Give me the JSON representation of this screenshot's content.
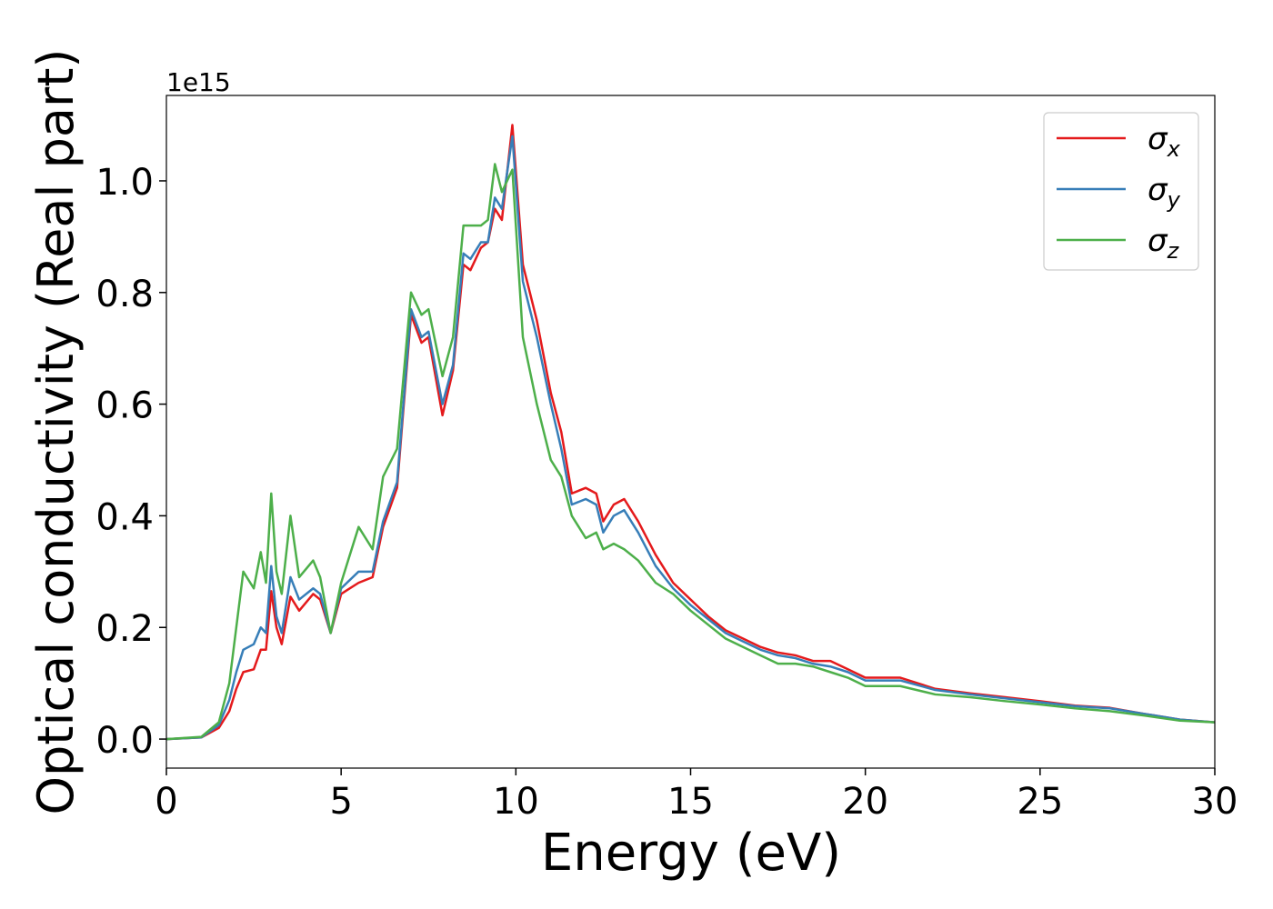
{
  "chart_data": {
    "type": "line",
    "x_label": "Energy (eV)",
    "y_label": "Optical conductivity (Real part)",
    "y_offset_label": "1e15",
    "x": [
      0,
      1,
      1.5,
      1.8,
      2.0,
      2.2,
      2.5,
      2.7,
      2.85,
      3.0,
      3.15,
      3.3,
      3.55,
      3.8,
      4.2,
      4.4,
      4.7,
      5.0,
      5.5,
      5.9,
      6.2,
      6.6,
      7.0,
      7.3,
      7.5,
      7.9,
      8.2,
      8.5,
      8.7,
      9.0,
      9.2,
      9.4,
      9.6,
      9.9,
      10.2,
      10.6,
      11.0,
      11.3,
      11.6,
      12.0,
      12.3,
      12.5,
      12.8,
      13.1,
      13.5,
      14.0,
      14.5,
      15.0,
      15.5,
      16,
      16.5,
      17,
      17.5,
      18,
      18.5,
      19,
      19.5,
      20,
      21,
      22,
      23,
      24,
      25,
      26,
      27,
      28,
      29,
      30
    ],
    "series": [
      {
        "name": "σx",
        "color": "#e41a1c",
        "values": [
          0,
          0.003,
          0.02,
          0.05,
          0.09,
          0.12,
          0.125,
          0.16,
          0.16,
          0.265,
          0.2,
          0.17,
          0.255,
          0.23,
          0.26,
          0.25,
          0.19,
          0.26,
          0.28,
          0.29,
          0.38,
          0.45,
          0.76,
          0.71,
          0.72,
          0.58,
          0.66,
          0.85,
          0.84,
          0.88,
          0.89,
          0.95,
          0.93,
          1.1,
          0.85,
          0.75,
          0.62,
          0.55,
          0.44,
          0.45,
          0.44,
          0.39,
          0.42,
          0.43,
          0.39,
          0.33,
          0.28,
          0.25,
          0.22,
          0.195,
          0.18,
          0.165,
          0.155,
          0.15,
          0.14,
          0.14,
          0.125,
          0.11,
          0.11,
          0.09,
          0.082,
          0.075,
          0.068,
          0.06,
          0.056,
          0.045,
          0.035,
          0.03
        ]
      },
      {
        "name": "σy",
        "color": "#377eb8",
        "values": [
          0,
          0.003,
          0.025,
          0.07,
          0.12,
          0.16,
          0.17,
          0.2,
          0.19,
          0.31,
          0.22,
          0.19,
          0.29,
          0.25,
          0.27,
          0.26,
          0.19,
          0.27,
          0.3,
          0.3,
          0.39,
          0.46,
          0.77,
          0.72,
          0.73,
          0.6,
          0.67,
          0.87,
          0.86,
          0.89,
          0.89,
          0.97,
          0.95,
          1.08,
          0.82,
          0.72,
          0.6,
          0.52,
          0.42,
          0.43,
          0.42,
          0.37,
          0.4,
          0.41,
          0.37,
          0.31,
          0.27,
          0.24,
          0.215,
          0.19,
          0.175,
          0.16,
          0.15,
          0.145,
          0.135,
          0.13,
          0.12,
          0.105,
          0.105,
          0.088,
          0.08,
          0.073,
          0.066,
          0.059,
          0.055,
          0.045,
          0.035,
          0.03
        ]
      },
      {
        "name": "σz",
        "color": "#4daf4a",
        "values": [
          0,
          0.004,
          0.03,
          0.1,
          0.2,
          0.3,
          0.27,
          0.335,
          0.28,
          0.44,
          0.3,
          0.26,
          0.4,
          0.29,
          0.32,
          0.29,
          0.19,
          0.28,
          0.38,
          0.34,
          0.47,
          0.52,
          0.8,
          0.76,
          0.77,
          0.65,
          0.72,
          0.92,
          0.92,
          0.92,
          0.93,
          1.03,
          0.98,
          1.02,
          0.72,
          0.6,
          0.5,
          0.47,
          0.4,
          0.36,
          0.37,
          0.34,
          0.35,
          0.34,
          0.32,
          0.28,
          0.26,
          0.23,
          0.205,
          0.18,
          0.165,
          0.15,
          0.135,
          0.135,
          0.13,
          0.12,
          0.11,
          0.095,
          0.095,
          0.08,
          0.075,
          0.068,
          0.062,
          0.055,
          0.05,
          0.042,
          0.033,
          0.03
        ]
      }
    ],
    "xlim": [
      0,
      30
    ],
    "xticks": [
      0,
      5,
      10,
      15,
      20,
      25,
      30
    ],
    "ylim": [
      -0.052,
      1.153
    ],
    "yticks": [
      {
        "value": 0,
        "label": "0.0"
      },
      0.2,
      0.4,
      0.6,
      0.8,
      {
        "value": 1,
        "label": "1.0"
      }
    ],
    "grid": false,
    "legend": "upper right"
  }
}
